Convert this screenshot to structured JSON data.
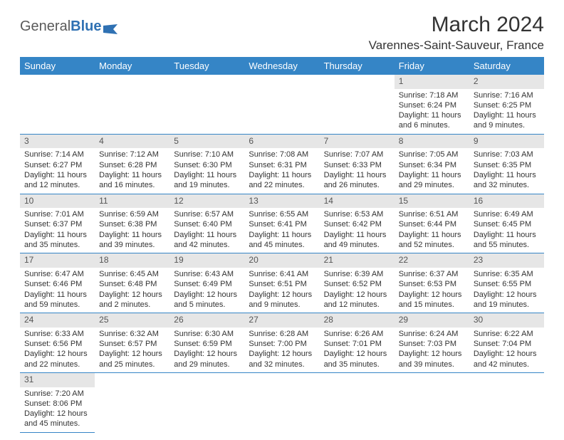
{
  "logo": {
    "general": "General",
    "blue": "Blue"
  },
  "title": "March 2024",
  "location": "Varennes-Saint-Sauveur, France",
  "colors": {
    "header_bg": "#3585c6",
    "header_text": "#ffffff",
    "daynum_bg": "#e6e6e6",
    "row_border": "#3585c6",
    "text": "#333333"
  },
  "weekdays": [
    "Sunday",
    "Monday",
    "Tuesday",
    "Wednesday",
    "Thursday",
    "Friday",
    "Saturday"
  ],
  "weeks": [
    [
      null,
      null,
      null,
      null,
      null,
      {
        "n": "1",
        "sr": "Sunrise: 7:18 AM",
        "ss": "Sunset: 6:24 PM",
        "dl": "Daylight: 11 hours and 6 minutes."
      },
      {
        "n": "2",
        "sr": "Sunrise: 7:16 AM",
        "ss": "Sunset: 6:25 PM",
        "dl": "Daylight: 11 hours and 9 minutes."
      }
    ],
    [
      {
        "n": "3",
        "sr": "Sunrise: 7:14 AM",
        "ss": "Sunset: 6:27 PM",
        "dl": "Daylight: 11 hours and 12 minutes."
      },
      {
        "n": "4",
        "sr": "Sunrise: 7:12 AM",
        "ss": "Sunset: 6:28 PM",
        "dl": "Daylight: 11 hours and 16 minutes."
      },
      {
        "n": "5",
        "sr": "Sunrise: 7:10 AM",
        "ss": "Sunset: 6:30 PM",
        "dl": "Daylight: 11 hours and 19 minutes."
      },
      {
        "n": "6",
        "sr": "Sunrise: 7:08 AM",
        "ss": "Sunset: 6:31 PM",
        "dl": "Daylight: 11 hours and 22 minutes."
      },
      {
        "n": "7",
        "sr": "Sunrise: 7:07 AM",
        "ss": "Sunset: 6:33 PM",
        "dl": "Daylight: 11 hours and 26 minutes."
      },
      {
        "n": "8",
        "sr": "Sunrise: 7:05 AM",
        "ss": "Sunset: 6:34 PM",
        "dl": "Daylight: 11 hours and 29 minutes."
      },
      {
        "n": "9",
        "sr": "Sunrise: 7:03 AM",
        "ss": "Sunset: 6:35 PM",
        "dl": "Daylight: 11 hours and 32 minutes."
      }
    ],
    [
      {
        "n": "10",
        "sr": "Sunrise: 7:01 AM",
        "ss": "Sunset: 6:37 PM",
        "dl": "Daylight: 11 hours and 35 minutes."
      },
      {
        "n": "11",
        "sr": "Sunrise: 6:59 AM",
        "ss": "Sunset: 6:38 PM",
        "dl": "Daylight: 11 hours and 39 minutes."
      },
      {
        "n": "12",
        "sr": "Sunrise: 6:57 AM",
        "ss": "Sunset: 6:40 PM",
        "dl": "Daylight: 11 hours and 42 minutes."
      },
      {
        "n": "13",
        "sr": "Sunrise: 6:55 AM",
        "ss": "Sunset: 6:41 PM",
        "dl": "Daylight: 11 hours and 45 minutes."
      },
      {
        "n": "14",
        "sr": "Sunrise: 6:53 AM",
        "ss": "Sunset: 6:42 PM",
        "dl": "Daylight: 11 hours and 49 minutes."
      },
      {
        "n": "15",
        "sr": "Sunrise: 6:51 AM",
        "ss": "Sunset: 6:44 PM",
        "dl": "Daylight: 11 hours and 52 minutes."
      },
      {
        "n": "16",
        "sr": "Sunrise: 6:49 AM",
        "ss": "Sunset: 6:45 PM",
        "dl": "Daylight: 11 hours and 55 minutes."
      }
    ],
    [
      {
        "n": "17",
        "sr": "Sunrise: 6:47 AM",
        "ss": "Sunset: 6:46 PM",
        "dl": "Daylight: 11 hours and 59 minutes."
      },
      {
        "n": "18",
        "sr": "Sunrise: 6:45 AM",
        "ss": "Sunset: 6:48 PM",
        "dl": "Daylight: 12 hours and 2 minutes."
      },
      {
        "n": "19",
        "sr": "Sunrise: 6:43 AM",
        "ss": "Sunset: 6:49 PM",
        "dl": "Daylight: 12 hours and 5 minutes."
      },
      {
        "n": "20",
        "sr": "Sunrise: 6:41 AM",
        "ss": "Sunset: 6:51 PM",
        "dl": "Daylight: 12 hours and 9 minutes."
      },
      {
        "n": "21",
        "sr": "Sunrise: 6:39 AM",
        "ss": "Sunset: 6:52 PM",
        "dl": "Daylight: 12 hours and 12 minutes."
      },
      {
        "n": "22",
        "sr": "Sunrise: 6:37 AM",
        "ss": "Sunset: 6:53 PM",
        "dl": "Daylight: 12 hours and 15 minutes."
      },
      {
        "n": "23",
        "sr": "Sunrise: 6:35 AM",
        "ss": "Sunset: 6:55 PM",
        "dl": "Daylight: 12 hours and 19 minutes."
      }
    ],
    [
      {
        "n": "24",
        "sr": "Sunrise: 6:33 AM",
        "ss": "Sunset: 6:56 PM",
        "dl": "Daylight: 12 hours and 22 minutes."
      },
      {
        "n": "25",
        "sr": "Sunrise: 6:32 AM",
        "ss": "Sunset: 6:57 PM",
        "dl": "Daylight: 12 hours and 25 minutes."
      },
      {
        "n": "26",
        "sr": "Sunrise: 6:30 AM",
        "ss": "Sunset: 6:59 PM",
        "dl": "Daylight: 12 hours and 29 minutes."
      },
      {
        "n": "27",
        "sr": "Sunrise: 6:28 AM",
        "ss": "Sunset: 7:00 PM",
        "dl": "Daylight: 12 hours and 32 minutes."
      },
      {
        "n": "28",
        "sr": "Sunrise: 6:26 AM",
        "ss": "Sunset: 7:01 PM",
        "dl": "Daylight: 12 hours and 35 minutes."
      },
      {
        "n": "29",
        "sr": "Sunrise: 6:24 AM",
        "ss": "Sunset: 7:03 PM",
        "dl": "Daylight: 12 hours and 39 minutes."
      },
      {
        "n": "30",
        "sr": "Sunrise: 6:22 AM",
        "ss": "Sunset: 7:04 PM",
        "dl": "Daylight: 12 hours and 42 minutes."
      }
    ],
    [
      {
        "n": "31",
        "sr": "Sunrise: 7:20 AM",
        "ss": "Sunset: 8:06 PM",
        "dl": "Daylight: 12 hours and 45 minutes."
      },
      null,
      null,
      null,
      null,
      null,
      null
    ]
  ]
}
